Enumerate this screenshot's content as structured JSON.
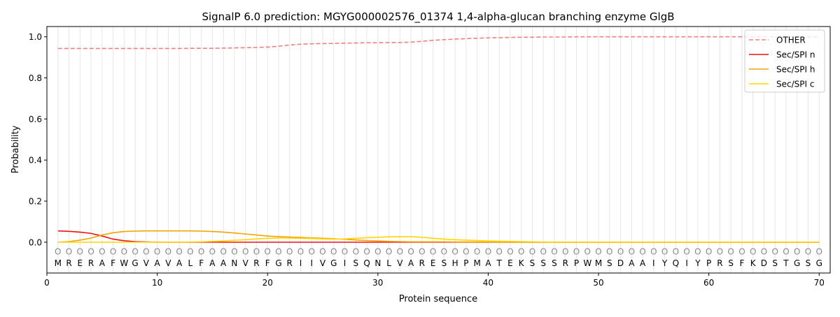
{
  "chart_data": {
    "type": "line",
    "title": "SignalP 6.0 prediction: MGYG000002576_01374 1,4-alpha-glucan branching enzyme GlgB",
    "xlabel": "Protein sequence",
    "ylabel": "Probability",
    "xlim": [
      0,
      71
    ],
    "ylim": [
      -0.15,
      1.05
    ],
    "xticks": [
      0,
      10,
      20,
      30,
      40,
      50,
      60,
      70
    ],
    "yticks": [
      0.0,
      0.2,
      0.4,
      0.6,
      0.8,
      1.0
    ],
    "ytick_labels": [
      "0.0",
      "0.2",
      "0.4",
      "0.6",
      "0.8",
      "1.0"
    ],
    "grid": "vertical lines at each residue",
    "legend_position": "top-right",
    "sequence": [
      "M",
      "R",
      "E",
      "R",
      "A",
      "F",
      "W",
      "G",
      "V",
      "A",
      "V",
      "A",
      "L",
      "F",
      "A",
      "A",
      "N",
      "V",
      "R",
      "F",
      "G",
      "R",
      "I",
      "I",
      "V",
      "G",
      "I",
      "S",
      "Q",
      "N",
      "L",
      "V",
      "A",
      "R",
      "E",
      "S",
      "H",
      "P",
      "M",
      "A",
      "T",
      "E",
      "K",
      "S",
      "S",
      "S",
      "R",
      "P",
      "W",
      "M",
      "S",
      "D",
      "A",
      "A",
      "I",
      "Y",
      "Q",
      "I",
      "Y",
      "P",
      "R",
      "S",
      "F",
      "K",
      "D",
      "S",
      "T",
      "G",
      "S",
      "G"
    ],
    "region_marker": "O",
    "series": [
      {
        "name": "OTHER",
        "color": "#f08080",
        "dash": "dashed",
        "values": [
          0.943,
          0.943,
          0.943,
          0.943,
          0.943,
          0.943,
          0.943,
          0.943,
          0.943,
          0.943,
          0.943,
          0.943,
          0.944,
          0.944,
          0.944,
          0.945,
          0.946,
          0.947,
          0.948,
          0.95,
          0.954,
          0.96,
          0.964,
          0.966,
          0.967,
          0.968,
          0.969,
          0.97,
          0.971,
          0.971,
          0.972,
          0.972,
          0.974,
          0.978,
          0.983,
          0.986,
          0.989,
          0.991,
          0.993,
          0.995,
          0.996,
          0.997,
          0.998,
          0.998,
          0.999,
          0.999,
          0.999,
          1.0,
          1.0,
          1.0,
          1.0,
          1.0,
          1.0,
          1.0,
          1.0,
          1.0,
          1.0,
          1.0,
          1.0,
          1.0,
          1.0,
          1.0,
          1.0,
          1.0,
          1.0,
          1.0,
          1.0,
          1.0,
          1.0,
          1.0
        ]
      },
      {
        "name": "Sec/SPI n",
        "color": "#ee1111",
        "dash": "solid",
        "values": [
          0.055,
          0.053,
          0.049,
          0.043,
          0.03,
          0.015,
          0.007,
          0.003,
          0.001,
          0.0,
          0.0,
          0.0,
          0.0,
          0.0,
          0.0,
          0.0,
          0.0,
          0.0,
          0.0,
          0.0,
          0.0,
          0.0,
          0.0,
          0.0,
          0.0,
          0.0,
          0.0,
          0.0,
          0.0,
          0.0,
          0.0,
          0.0,
          0.0,
          0.0,
          0.0,
          0.0,
          0.0,
          0.0,
          0.0,
          0.0,
          0.0,
          0.0,
          0.0,
          0.0,
          0.0,
          0.0,
          0.0,
          0.0,
          0.0,
          0.0,
          0.0,
          0.0,
          0.0,
          0.0,
          0.0,
          0.0,
          0.0,
          0.0,
          0.0,
          0.0,
          0.0,
          0.0,
          0.0,
          0.0,
          0.0,
          0.0,
          0.0,
          0.0,
          0.0,
          0.0
        ]
      },
      {
        "name": "Sec/SPI h",
        "color": "#f4a300",
        "dash": "solid",
        "values": [
          0.0,
          0.003,
          0.01,
          0.02,
          0.035,
          0.046,
          0.052,
          0.054,
          0.055,
          0.055,
          0.055,
          0.055,
          0.055,
          0.054,
          0.052,
          0.049,
          0.045,
          0.04,
          0.035,
          0.03,
          0.027,
          0.025,
          0.023,
          0.021,
          0.019,
          0.017,
          0.014,
          0.011,
          0.008,
          0.006,
          0.004,
          0.003,
          0.002,
          0.002,
          0.002,
          0.002,
          0.001,
          0.001,
          0.001,
          0.001,
          0.0,
          0.0,
          0.0,
          0.0,
          0.0,
          0.0,
          0.0,
          0.0,
          0.0,
          0.0,
          0.0,
          0.0,
          0.0,
          0.0,
          0.0,
          0.0,
          0.0,
          0.0,
          0.0,
          0.0,
          0.0,
          0.0,
          0.0,
          0.0,
          0.0,
          0.0,
          0.0,
          0.0,
          0.0,
          0.0
        ]
      },
      {
        "name": "Sec/SPI c",
        "color": "#ffd700",
        "dash": "solid",
        "values": [
          0.0,
          0.0,
          0.0,
          0.0,
          0.0,
          0.0,
          0.0,
          0.0,
          0.0,
          0.0,
          0.0,
          0.0,
          0.001,
          0.002,
          0.004,
          0.006,
          0.009,
          0.012,
          0.016,
          0.019,
          0.02,
          0.02,
          0.019,
          0.018,
          0.016,
          0.015,
          0.016,
          0.019,
          0.022,
          0.024,
          0.026,
          0.027,
          0.027,
          0.024,
          0.019,
          0.015,
          0.012,
          0.01,
          0.008,
          0.006,
          0.005,
          0.004,
          0.003,
          0.002,
          0.001,
          0.0,
          0.0,
          0.0,
          0.0,
          0.0,
          0.0,
          0.0,
          0.0,
          0.0,
          0.0,
          0.0,
          0.0,
          0.0,
          0.0,
          0.0,
          0.0,
          0.0,
          0.0,
          0.0,
          0.0,
          0.0,
          0.0,
          0.0,
          0.0,
          0.0
        ]
      }
    ]
  }
}
